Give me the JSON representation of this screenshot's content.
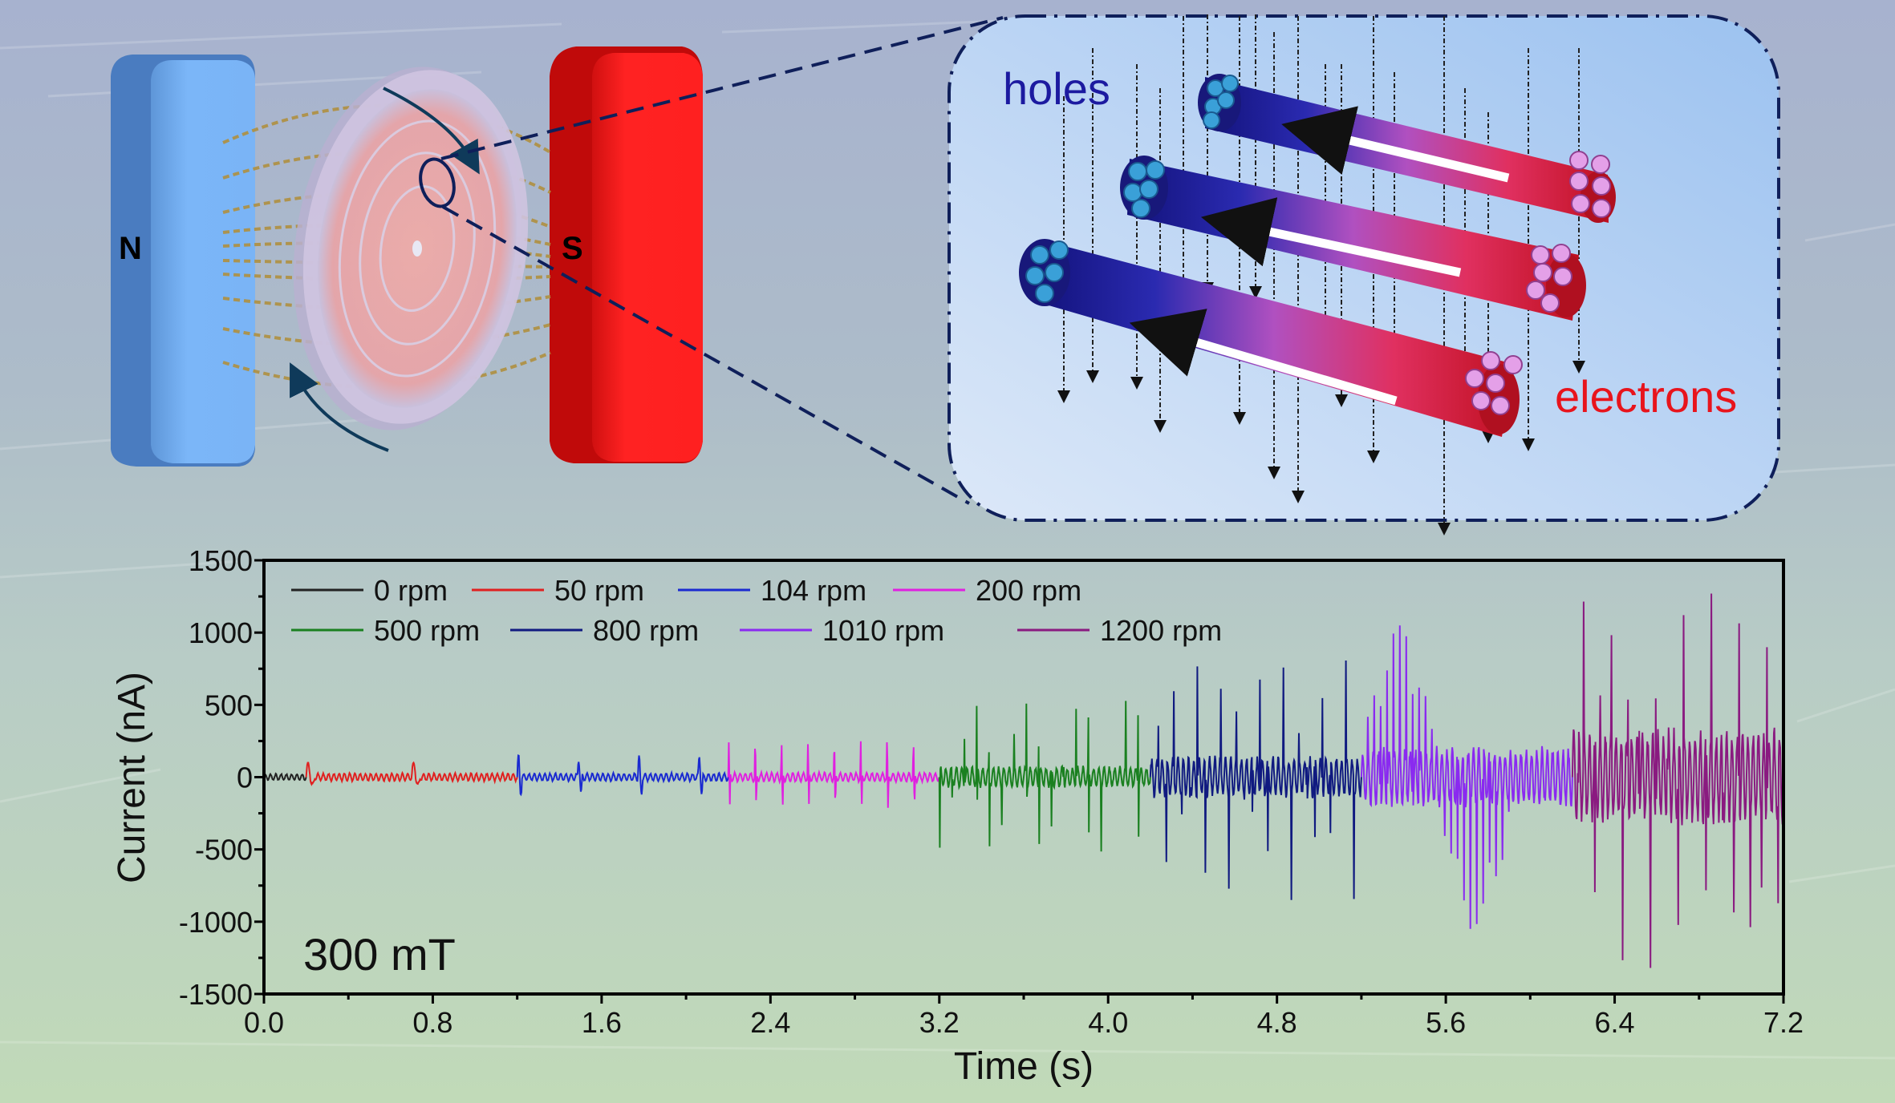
{
  "illustration": {
    "magnet_north_label": "N",
    "magnet_south_label": "S",
    "holes_label": "holes",
    "electrons_label": "electrons",
    "colors": {
      "north_magnet": "#78b4f5",
      "south_magnet": "#ff2020",
      "holes_text": "#1c1aa0",
      "electrons_text": "#e8141c",
      "inset_border": "#0f1f5a"
    }
  },
  "chart_data": {
    "type": "line",
    "title": "",
    "xlabel": "Time (s)",
    "ylabel": "Current (nA)",
    "xlim": [
      0.0,
      7.2
    ],
    "ylim": [
      -1500,
      1500
    ],
    "xticks": [
      "0.0",
      "0.8",
      "1.6",
      "2.4",
      "3.2",
      "4.0",
      "4.8",
      "5.6",
      "6.4",
      "7.2"
    ],
    "xtick_values": [
      0.0,
      0.8,
      1.6,
      2.4,
      3.2,
      4.0,
      4.8,
      5.6,
      6.4,
      7.2
    ],
    "yticks": [
      "1500",
      "1000",
      "500",
      "0",
      "-500",
      "-1000",
      "-1500"
    ],
    "ytick_values": [
      1500,
      1000,
      500,
      0,
      -500,
      -1000,
      -1500
    ],
    "grid": false,
    "legend_placement": "top-left",
    "annotation": "300 mT",
    "series": [
      {
        "name": "0 rpm",
        "color": "#222222",
        "t_start": 0.0,
        "t_end": 0.2,
        "peak_pos": 30,
        "peak_neg": -20,
        "pulses_per_s": 0,
        "ripple": 25
      },
      {
        "name": "50 rpm",
        "color": "#e02020",
        "t_start": 0.2,
        "t_end": 1.2,
        "peak_pos": 100,
        "peak_neg": -70,
        "pulses_per_s": 2,
        "ripple": 30
      },
      {
        "name": "104 rpm",
        "color": "#1a2ad0",
        "t_start": 1.2,
        "t_end": 2.2,
        "peak_pos": 150,
        "peak_neg": -120,
        "pulses_per_s": 3.5,
        "ripple": 30
      },
      {
        "name": "200 rpm",
        "color": "#e020e0",
        "t_start": 2.2,
        "t_end": 3.2,
        "peak_pos": 250,
        "peak_neg": -250,
        "pulses_per_s": 8,
        "ripple": 35
      },
      {
        "name": "500 rpm",
        "color": "#1a8020",
        "t_start": 3.2,
        "t_end": 4.2,
        "peak_pos": 550,
        "peak_neg": -550,
        "pulses_per_s": 17,
        "ripple": 80
      },
      {
        "name": "800 rpm",
        "color": "#101a80",
        "t_start": 4.2,
        "t_end": 5.2,
        "peak_pos": 820,
        "peak_neg": -850,
        "pulses_per_s": 27,
        "ripple": 150
      },
      {
        "name": "1010 rpm",
        "color": "#8a2af0",
        "t_start": 5.2,
        "t_end": 6.2,
        "peak_pos": 1050,
        "peak_neg": -1050,
        "pulses_per_s": 33,
        "ripple": 220
      },
      {
        "name": "1200 rpm",
        "color": "#8a1a80",
        "t_start": 6.2,
        "t_end": 7.2,
        "peak_pos": 1270,
        "peak_neg": -1320,
        "pulses_per_s": 38,
        "ripple": 350
      }
    ]
  }
}
